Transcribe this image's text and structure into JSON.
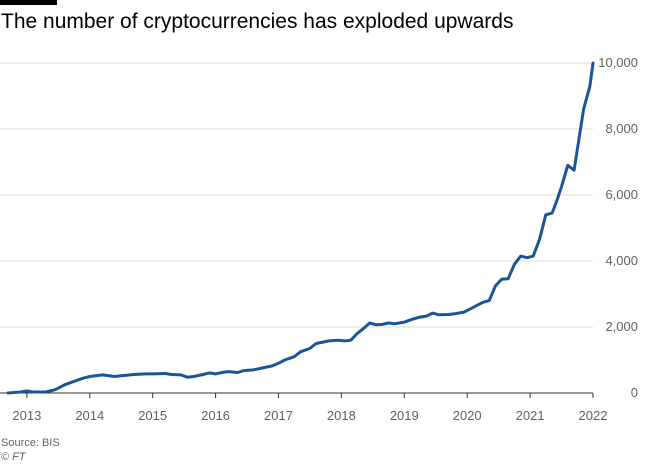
{
  "title": "The number of cryptocurrencies has exploded upwards",
  "source": "Source: BIS",
  "credit": "© FT",
  "colors": {
    "line": "#1c5596",
    "grid": "#e6d9ce",
    "tick_text": "#66605c",
    "axis": "#33302e"
  },
  "chart_data": {
    "type": "line",
    "title": "The number of cryptocurrencies has exploded upwards",
    "xlabel": "",
    "ylabel": "",
    "xlim": [
      2012.7,
      2022.0
    ],
    "ylim": [
      0,
      10000
    ],
    "y_axis_position": "right",
    "grid": true,
    "x_ticks": [
      "2013",
      "2014",
      "2015",
      "2016",
      "2017",
      "2018",
      "2019",
      "2020",
      "2021",
      "2022"
    ],
    "y_ticks": [
      "0",
      "2,000",
      "4,000",
      "6,000",
      "8,000",
      "10,000"
    ],
    "series": [
      {
        "x": [
          2012.7,
          2012.9,
          2013.0,
          2013.1,
          2013.3,
          2013.45,
          2013.6,
          2013.75,
          2013.9,
          2014.0,
          2014.2,
          2014.4,
          2014.5,
          2014.7,
          2014.9,
          2015.0,
          2015.2,
          2015.3,
          2015.45,
          2015.55,
          2015.65,
          2015.8,
          2015.9,
          2016.0,
          2016.1,
          2016.2,
          2016.35,
          2016.45,
          2016.6,
          2016.75,
          2016.9,
          2017.0,
          2017.1,
          2017.25,
          2017.35,
          2017.5,
          2017.6,
          2017.8,
          2017.95,
          2018.05,
          2018.15,
          2018.25,
          2018.35,
          2018.45,
          2018.55,
          2018.65,
          2018.75,
          2018.85,
          2019.0,
          2019.15,
          2019.25,
          2019.35,
          2019.45,
          2019.55,
          2019.7,
          2019.8,
          2019.95,
          2020.05,
          2020.15,
          2020.25,
          2020.35,
          2020.45,
          2020.55,
          2020.65,
          2020.75,
          2020.85,
          2020.95,
          2021.05,
          2021.15,
          2021.25,
          2021.35,
          2021.42,
          2021.5,
          2021.6,
          2021.7,
          2021.85,
          2021.95,
          2022.0
        ],
        "y": [
          0,
          30,
          60,
          30,
          30,
          100,
          250,
          350,
          450,
          500,
          550,
          500,
          520,
          560,
          580,
          580,
          590,
          560,
          550,
          480,
          500,
          560,
          610,
          580,
          620,
          650,
          620,
          680,
          700,
          760,
          820,
          900,
          1000,
          1100,
          1250,
          1350,
          1500,
          1580,
          1600,
          1580,
          1600,
          1800,
          1950,
          2120,
          2070,
          2080,
          2120,
          2100,
          2150,
          2250,
          2300,
          2330,
          2420,
          2370,
          2380,
          2400,
          2450,
          2550,
          2650,
          2750,
          2800,
          3250,
          3450,
          3460,
          3900,
          4150,
          4100,
          4150,
          4650,
          5400,
          5450,
          5800,
          6250,
          6900,
          6750,
          8600,
          9300,
          10000
        ]
      }
    ]
  }
}
